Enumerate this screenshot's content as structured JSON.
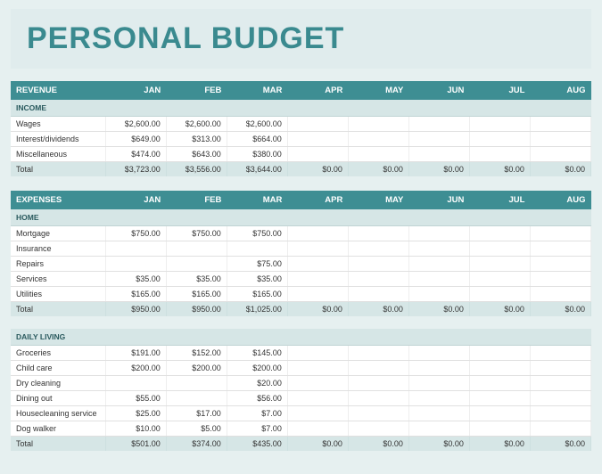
{
  "title": "PERSONAL BUDGET",
  "months": [
    "JAN",
    "FEB",
    "MAR",
    "APR",
    "MAY",
    "JUN",
    "JUL",
    "AUG"
  ],
  "colors": {
    "page_bg": "#e6f0f0",
    "title_band_bg": "#e0eced",
    "title_color": "#3a8a8f",
    "header_bg": "#3e8e93",
    "header_fg": "#ffffff",
    "sub_bg": "#d6e6e6",
    "sub_fg": "#2a5a5e",
    "row_border": "#e0e0e0"
  },
  "typography": {
    "title_fontsize": 34,
    "title_weight": 700,
    "header_fontsize": 9.5,
    "cell_fontsize": 9
  },
  "sections": [
    {
      "header": "REVENUE",
      "groups": [
        {
          "label": "INCOME",
          "rows": [
            {
              "label": "Wages",
              "values": [
                "$2,600.00",
                "$2,600.00",
                "$2,600.00",
                "",
                "",
                "",
                "",
                ""
              ]
            },
            {
              "label": "Interest/dividends",
              "values": [
                "$649.00",
                "$313.00",
                "$664.00",
                "",
                "",
                "",
                "",
                ""
              ]
            },
            {
              "label": "Miscellaneous",
              "values": [
                "$474.00",
                "$643.00",
                "$380.00",
                "",
                "",
                "",
                "",
                ""
              ]
            }
          ],
          "total": {
            "label": "Total",
            "values": [
              "$3,723.00",
              "$3,556.00",
              "$3,644.00",
              "$0.00",
              "$0.00",
              "$0.00",
              "$0.00",
              "$0.00"
            ]
          }
        }
      ]
    },
    {
      "header": "EXPENSES",
      "groups": [
        {
          "label": "HOME",
          "rows": [
            {
              "label": "Mortgage",
              "values": [
                "$750.00",
                "$750.00",
                "$750.00",
                "",
                "",
                "",
                "",
                ""
              ]
            },
            {
              "label": "Insurance",
              "values": [
                "",
                "",
                "",
                "",
                "",
                "",
                "",
                ""
              ]
            },
            {
              "label": "Repairs",
              "values": [
                "",
                "",
                "$75.00",
                "",
                "",
                "",
                "",
                ""
              ]
            },
            {
              "label": "Services",
              "values": [
                "$35.00",
                "$35.00",
                "$35.00",
                "",
                "",
                "",
                "",
                ""
              ]
            },
            {
              "label": "Utilities",
              "values": [
                "$165.00",
                "$165.00",
                "$165.00",
                "",
                "",
                "",
                "",
                ""
              ]
            }
          ],
          "total": {
            "label": "Total",
            "values": [
              "$950.00",
              "$950.00",
              "$1,025.00",
              "$0.00",
              "$0.00",
              "$0.00",
              "$0.00",
              "$0.00"
            ]
          }
        },
        {
          "label": "DAILY LIVING",
          "rows": [
            {
              "label": "Groceries",
              "values": [
                "$191.00",
                "$152.00",
                "$145.00",
                "",
                "",
                "",
                "",
                ""
              ]
            },
            {
              "label": "Child care",
              "values": [
                "$200.00",
                "$200.00",
                "$200.00",
                "",
                "",
                "",
                "",
                ""
              ]
            },
            {
              "label": "Dry cleaning",
              "values": [
                "",
                "",
                "$20.00",
                "",
                "",
                "",
                "",
                ""
              ]
            },
            {
              "label": "Dining out",
              "values": [
                "$55.00",
                "",
                "$56.00",
                "",
                "",
                "",
                "",
                ""
              ]
            },
            {
              "label": "Housecleaning service",
              "values": [
                "$25.00",
                "$17.00",
                "$7.00",
                "",
                "",
                "",
                "",
                ""
              ]
            },
            {
              "label": "Dog walker",
              "values": [
                "$10.00",
                "$5.00",
                "$7.00",
                "",
                "",
                "",
                "",
                ""
              ]
            }
          ],
          "total": {
            "label": "Total",
            "values": [
              "$501.00",
              "$374.00",
              "$435.00",
              "$0.00",
              "$0.00",
              "$0.00",
              "$0.00",
              "$0.00"
            ]
          }
        }
      ]
    }
  ]
}
